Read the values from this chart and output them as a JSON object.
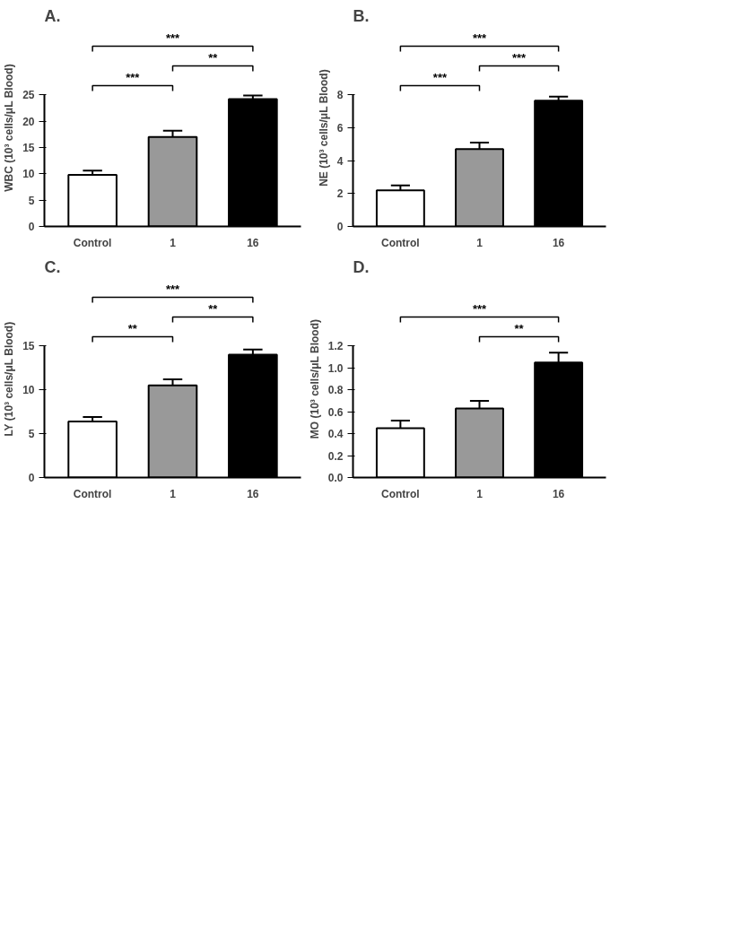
{
  "chart_data": [
    {
      "type": "bar",
      "title": "A.",
      "ylabel": "WBC (10³ cells/μL Blood)",
      "categories": [
        "Control",
        "1",
        "16"
      ],
      "values": [
        9.8,
        17,
        24.2
      ],
      "colors": [
        "#ffffff",
        "#999999",
        "#000000"
      ],
      "errors": [
        [
          9.8,
          10.6
        ],
        [
          17,
          18.2
        ],
        [
          24.2,
          24.9
        ]
      ],
      "ylim": [
        0,
        25
      ],
      "yticks": [
        0,
        5,
        10,
        15,
        20,
        25
      ],
      "grid": false,
      "annotations": [
        "***",
        "**",
        "***"
      ]
    },
    {
      "type": "bar",
      "title": "B.",
      "ylabel": "NE (10³ cells/μL Blood)",
      "categories": [
        "Control",
        "1",
        "16"
      ],
      "values": [
        2.2,
        4.7,
        7.65
      ],
      "colors": [
        "#ffffff",
        "#999999",
        "#000000"
      ],
      "errors": [
        [
          2.2,
          2.5
        ],
        [
          4.7,
          5.1
        ],
        [
          7.65,
          7.9
        ]
      ],
      "ylim": [
        0,
        8
      ],
      "yticks": [
        0,
        2,
        4,
        6,
        8
      ],
      "grid": false,
      "annotations": [
        "***",
        "***",
        "***"
      ]
    },
    {
      "type": "bar",
      "title": "C.",
      "ylabel": "LY (10³ cells/μL Blood)",
      "categories": [
        "Control",
        "1",
        "16"
      ],
      "values": [
        6.4,
        10.5,
        14.0
      ],
      "colors": [
        "#ffffff",
        "#999999",
        "#000000"
      ],
      "errors": [
        [
          6.4,
          6.9
        ],
        [
          10.5,
          11.2
        ],
        [
          14.0,
          14.6
        ]
      ],
      "ylim": [
        0,
        15
      ],
      "yticks": [
        0,
        5,
        10,
        15
      ],
      "grid": false,
      "annotations": [
        "***",
        "**",
        "**"
      ]
    },
    {
      "type": "bar",
      "title": "D.",
      "ylabel": "MO (10³ cells/μL Blood)",
      "categories": [
        "Control",
        "1",
        "16"
      ],
      "values": [
        0.45,
        0.63,
        1.05
      ],
      "colors": [
        "#ffffff",
        "#999999",
        "#000000"
      ],
      "errors": [
        [
          0.45,
          0.52
        ],
        [
          0.63,
          0.7
        ],
        [
          1.05,
          1.14
        ]
      ],
      "ylim": [
        0,
        1.2
      ],
      "yticks": [
        {
          "value": 0,
          "label": "0.0"
        },
        0.2,
        0.4,
        0.6,
        0.8,
        {
          "value": 1,
          "label": "1.0"
        },
        1.2
      ],
      "grid": false,
      "annotations": [
        "***",
        "**"
      ]
    }
  ]
}
